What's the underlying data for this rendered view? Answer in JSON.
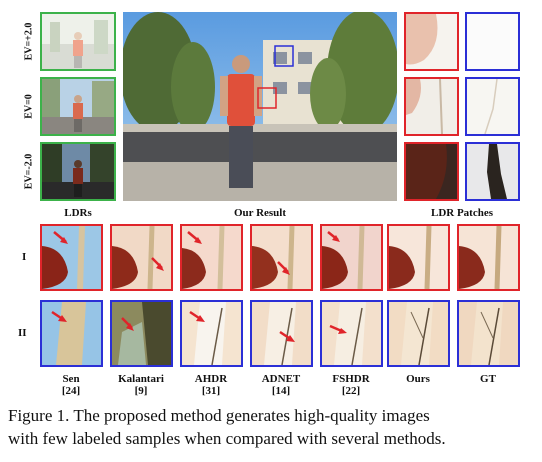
{
  "ev_labels": [
    "EV=+2.0",
    "EV=0",
    "EV=-2.0"
  ],
  "section_labels": {
    "ldrs": "LDRs",
    "result": "Our Result",
    "patches": "LDR Patches"
  },
  "row_labels": [
    "I",
    "II"
  ],
  "methods": [
    {
      "name": "Sen",
      "ref": "[24]"
    },
    {
      "name": "Kalantari",
      "ref": "[9]"
    },
    {
      "name": "AHDR",
      "ref": "[31]"
    },
    {
      "name": "ADNET",
      "ref": "[14]"
    },
    {
      "name": "FSHDR",
      "ref": "[22]"
    },
    {
      "name": "Ours",
      "ref": ""
    },
    {
      "name": "GT",
      "ref": ""
    }
  ],
  "caption": {
    "line1": "Figure 1.  The proposed method generates high-quality images",
    "line2": "with few labeled samples when compared with several methods."
  },
  "colors": {
    "green_frame": "#3cb24a",
    "red_frame": "#e0242a",
    "blue_frame": "#2b2fd6",
    "arrow": "#e0242a"
  }
}
